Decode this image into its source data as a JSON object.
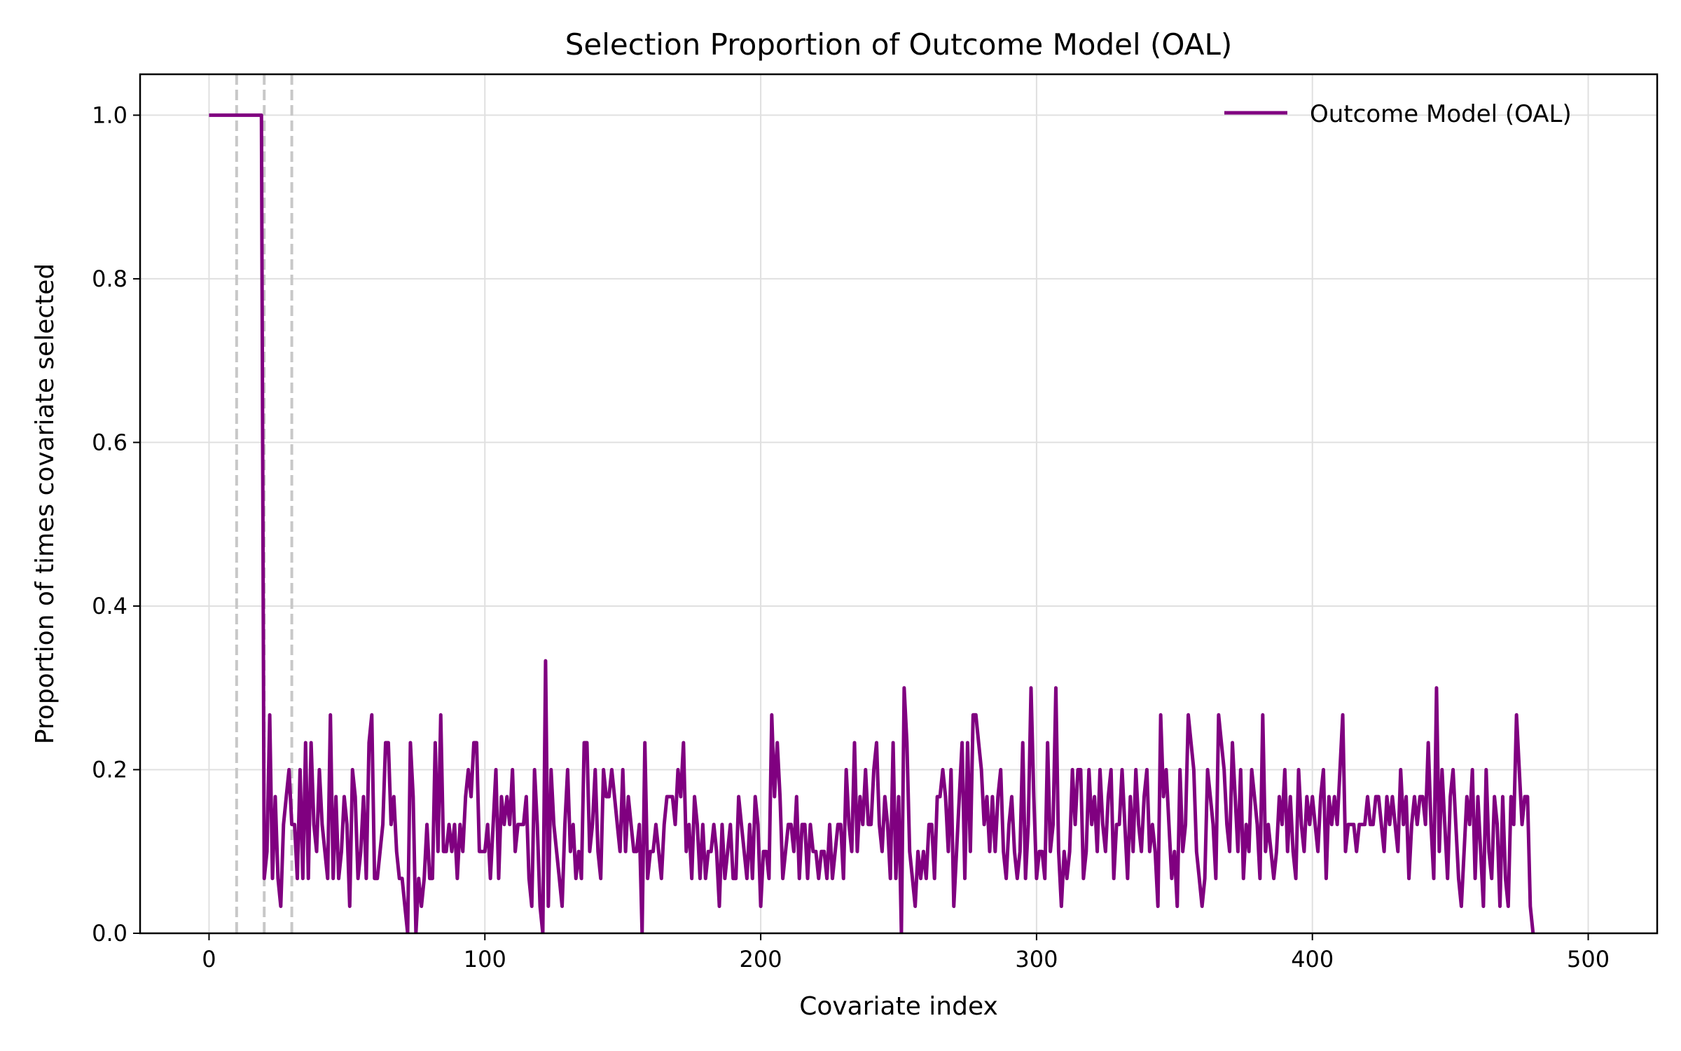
{
  "chart_data": {
    "type": "line",
    "title": "Selection Proportion of Outcome Model (OAL)",
    "xlabel": "Covariate index",
    "ylabel": "Proportion of times covariate selected",
    "xlim": [
      -25,
      525
    ],
    "ylim": [
      0,
      1.05
    ],
    "xticks": [
      0,
      100,
      200,
      300,
      400,
      500
    ],
    "yticks": [
      0.0,
      0.2,
      0.4,
      0.6,
      0.8,
      1.0
    ],
    "xtick_labels": [
      "0",
      "100",
      "200",
      "300",
      "400",
      "500"
    ],
    "ytick_labels": [
      "0.0",
      "0.2",
      "0.4",
      "0.6",
      "0.8",
      "1.0"
    ],
    "grid": true,
    "legend_position": "top-right",
    "reference_lines": {
      "orientation": "vertical",
      "style": "dashed",
      "color": "#c8c8c8",
      "x": [
        10,
        20,
        30
      ]
    },
    "series": [
      {
        "name": "Outcome Model (OAL)",
        "color": "#800080",
        "x_start": 0,
        "x_step": 1,
        "values": [
          1.0,
          1.0,
          1.0,
          1.0,
          1.0,
          1.0,
          1.0,
          1.0,
          1.0,
          1.0,
          1.0,
          1.0,
          1.0,
          1.0,
          1.0,
          1.0,
          1.0,
          1.0,
          1.0,
          1.0,
          0.067,
          0.1,
          0.267,
          0.067,
          0.167,
          0.067,
          0.033,
          0.133,
          0.167,
          0.2,
          0.133,
          0.133,
          0.067,
          0.2,
          0.067,
          0.233,
          0.067,
          0.233,
          0.133,
          0.1,
          0.2,
          0.133,
          0.1,
          0.067,
          0.267,
          0.067,
          0.167,
          0.067,
          0.1,
          0.167,
          0.133,
          0.033,
          0.2,
          0.167,
          0.067,
          0.1,
          0.167,
          0.067,
          0.233,
          0.267,
          0.067,
          0.067,
          0.1,
          0.133,
          0.233,
          0.233,
          0.133,
          0.167,
          0.1,
          0.067,
          0.067,
          0.033,
          0.0,
          0.233,
          0.167,
          0.0,
          0.067,
          0.033,
          0.067,
          0.133,
          0.067,
          0.067,
          0.233,
          0.1,
          0.267,
          0.1,
          0.1,
          0.133,
          0.1,
          0.133,
          0.067,
          0.133,
          0.1,
          0.167,
          0.2,
          0.167,
          0.233,
          0.233,
          0.1,
          0.1,
          0.1,
          0.133,
          0.067,
          0.133,
          0.2,
          0.067,
          0.167,
          0.133,
          0.167,
          0.133,
          0.2,
          0.1,
          0.133,
          0.133,
          0.133,
          0.167,
          0.067,
          0.033,
          0.2,
          0.133,
          0.033,
          0.0,
          0.333,
          0.033,
          0.2,
          0.133,
          0.1,
          0.067,
          0.033,
          0.133,
          0.2,
          0.1,
          0.133,
          0.067,
          0.1,
          0.067,
          0.233,
          0.233,
          0.1,
          0.133,
          0.2,
          0.1,
          0.067,
          0.2,
          0.167,
          0.167,
          0.2,
          0.167,
          0.133,
          0.1,
          0.2,
          0.1,
          0.167,
          0.133,
          0.1,
          0.1,
          0.133,
          0.0,
          0.233,
          0.067,
          0.1,
          0.1,
          0.133,
          0.1,
          0.067,
          0.133,
          0.167,
          0.167,
          0.167,
          0.133,
          0.2,
          0.167,
          0.233,
          0.1,
          0.133,
          0.067,
          0.167,
          0.133,
          0.067,
          0.133,
          0.067,
          0.1,
          0.1,
          0.133,
          0.1,
          0.033,
          0.133,
          0.067,
          0.1,
          0.133,
          0.067,
          0.067,
          0.167,
          0.133,
          0.1,
          0.067,
          0.133,
          0.067,
          0.167,
          0.133,
          0.033,
          0.1,
          0.1,
          0.067,
          0.267,
          0.167,
          0.233,
          0.167,
          0.067,
          0.1,
          0.133,
          0.133,
          0.1,
          0.167,
          0.067,
          0.133,
          0.133,
          0.067,
          0.133,
          0.1,
          0.1,
          0.067,
          0.1,
          0.1,
          0.067,
          0.133,
          0.067,
          0.1,
          0.133,
          0.133,
          0.067,
          0.2,
          0.133,
          0.1,
          0.233,
          0.1,
          0.167,
          0.133,
          0.2,
          0.133,
          0.133,
          0.2,
          0.233,
          0.133,
          0.1,
          0.167,
          0.133,
          0.067,
          0.233,
          0.067,
          0.167,
          0.0,
          0.3,
          0.233,
          0.1,
          0.067,
          0.033,
          0.1,
          0.067,
          0.1,
          0.067,
          0.133,
          0.133,
          0.067,
          0.167,
          0.167,
          0.2,
          0.167,
          0.1,
          0.2,
          0.033,
          0.1,
          0.167,
          0.233,
          0.067,
          0.233,
          0.1,
          0.267,
          0.267,
          0.233,
          0.2,
          0.133,
          0.167,
          0.1,
          0.167,
          0.1,
          0.167,
          0.2,
          0.1,
          0.067,
          0.133,
          0.167,
          0.1,
          0.067,
          0.1,
          0.233,
          0.067,
          0.133,
          0.3,
          0.167,
          0.067,
          0.1,
          0.1,
          0.067,
          0.233,
          0.1,
          0.133,
          0.3,
          0.1,
          0.033,
          0.1,
          0.067,
          0.1,
          0.2,
          0.133,
          0.2,
          0.2,
          0.067,
          0.1,
          0.2,
          0.133,
          0.167,
          0.1,
          0.2,
          0.133,
          0.1,
          0.167,
          0.2,
          0.067,
          0.133,
          0.133,
          0.2,
          0.133,
          0.067,
          0.167,
          0.1,
          0.2,
          0.133,
          0.1,
          0.167,
          0.2,
          0.1,
          0.133,
          0.1,
          0.033,
          0.267,
          0.167,
          0.2,
          0.133,
          0.067,
          0.1,
          0.033,
          0.2,
          0.1,
          0.133,
          0.267,
          0.233,
          0.2,
          0.1,
          0.067,
          0.033,
          0.067,
          0.2,
          0.167,
          0.133,
          0.067,
          0.267,
          0.233,
          0.2,
          0.133,
          0.1,
          0.233,
          0.167,
          0.1,
          0.2,
          0.067,
          0.133,
          0.1,
          0.2,
          0.167,
          0.133,
          0.067,
          0.267,
          0.1,
          0.133,
          0.1,
          0.067,
          0.1,
          0.167,
          0.133,
          0.2,
          0.1,
          0.167,
          0.1,
          0.067,
          0.2,
          0.133,
          0.1,
          0.167,
          0.133,
          0.167,
          0.133,
          0.1,
          0.167,
          0.2,
          0.067,
          0.167,
          0.133,
          0.167,
          0.133,
          0.2,
          0.267,
          0.1,
          0.133,
          0.133,
          0.133,
          0.1,
          0.133,
          0.133,
          0.133,
          0.167,
          0.133,
          0.133,
          0.167,
          0.167,
          0.133,
          0.1,
          0.167,
          0.133,
          0.167,
          0.133,
          0.1,
          0.2,
          0.133,
          0.167,
          0.067,
          0.133,
          0.167,
          0.133,
          0.167,
          0.167,
          0.133,
          0.233,
          0.133,
          0.067,
          0.3,
          0.1,
          0.2,
          0.133,
          0.067,
          0.167,
          0.2,
          0.133,
          0.067,
          0.033,
          0.1,
          0.167,
          0.133,
          0.2,
          0.067,
          0.167,
          0.1,
          0.033,
          0.2,
          0.1,
          0.067,
          0.167,
          0.133,
          0.033,
          0.167,
          0.067,
          0.033,
          0.167,
          0.133,
          0.267,
          0.2,
          0.133,
          0.167,
          0.167,
          0.033,
          0.0
        ]
      }
    ]
  }
}
